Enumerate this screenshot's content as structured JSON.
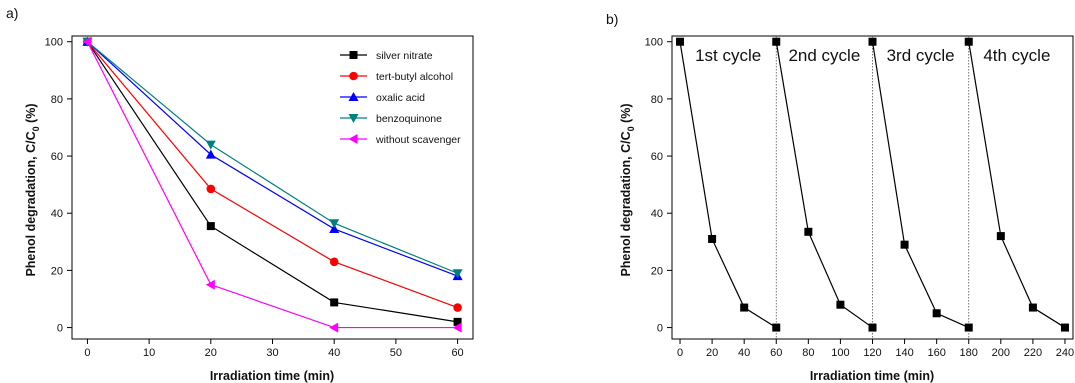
{
  "chart_data": [
    {
      "type": "line",
      "panel_label": "a)",
      "xlabel": "Irradiation time (min)",
      "ylabel": "Phenol degradation, C/C",
      "ylabel_sub": "0",
      "ylabel_suffix": " (%)",
      "xlim": [
        -2.5,
        62.5
      ],
      "ylim": [
        -4,
        102
      ],
      "xticks": [
        0,
        10,
        20,
        30,
        40,
        50,
        60
      ],
      "yticks": [
        0,
        20,
        40,
        60,
        80,
        100
      ],
      "legend_position": "top-right",
      "grid": false,
      "x": [
        0,
        20,
        40,
        60
      ],
      "series": [
        {
          "name": "silver nitrate",
          "color": "#000000",
          "marker": "square",
          "values": [
            100,
            35.5,
            8.8,
            2
          ]
        },
        {
          "name": "tert-butyl alcohol",
          "color": "#ff0000",
          "marker": "circle",
          "values": [
            100,
            48.5,
            23,
            7
          ]
        },
        {
          "name": "oxalic acid",
          "color": "#0000ff",
          "marker": "triangle-up",
          "values": [
            100,
            60.5,
            34.5,
            18
          ]
        },
        {
          "name": "benzoquinone",
          "color": "#008080",
          "marker": "triangle-down",
          "values": [
            100,
            64,
            36.5,
            19
          ]
        },
        {
          "name": "without scavenger",
          "color": "#ff00ff",
          "marker": "triangle-left",
          "values": [
            100,
            15,
            0,
            0
          ]
        }
      ]
    },
    {
      "type": "line",
      "panel_label": "b)",
      "xlabel": "Irradiation time (min)",
      "ylabel": "Phenol degradation, C/C",
      "ylabel_sub": "0",
      "ylabel_suffix": " (%)",
      "xlim": [
        -5,
        245
      ],
      "ylim": [
        -4,
        102
      ],
      "xticks": [
        0,
        20,
        40,
        60,
        80,
        100,
        120,
        140,
        160,
        180,
        200,
        220,
        240
      ],
      "yticks": [
        0,
        20,
        40,
        60,
        80,
        100
      ],
      "grid": false,
      "separators": [
        60,
        120,
        180
      ],
      "cycle_labels": [
        {
          "text": "1st cycle",
          "x": 30
        },
        {
          "text": "2nd cycle",
          "x": 90
        },
        {
          "text": "3rd cycle",
          "x": 150
        },
        {
          "text": "4th cycle",
          "x": 210
        }
      ],
      "series": [
        {
          "color": "#000000",
          "marker": "square",
          "points": [
            [
              0,
              100
            ],
            [
              20,
              31
            ],
            [
              40,
              7
            ],
            [
              60,
              0
            ]
          ]
        },
        {
          "color": "#000000",
          "marker": "square",
          "points": [
            [
              60,
              100
            ],
            [
              80,
              33.5
            ],
            [
              100,
              8
            ],
            [
              120,
              0
            ]
          ]
        },
        {
          "color": "#000000",
          "marker": "square",
          "points": [
            [
              120,
              100
            ],
            [
              140,
              29
            ],
            [
              160,
              5
            ],
            [
              180,
              0
            ]
          ]
        },
        {
          "color": "#000000",
          "marker": "square",
          "points": [
            [
              180,
              100
            ],
            [
              200,
              32
            ],
            [
              220,
              7
            ],
            [
              240,
              0
            ]
          ]
        }
      ]
    }
  ]
}
